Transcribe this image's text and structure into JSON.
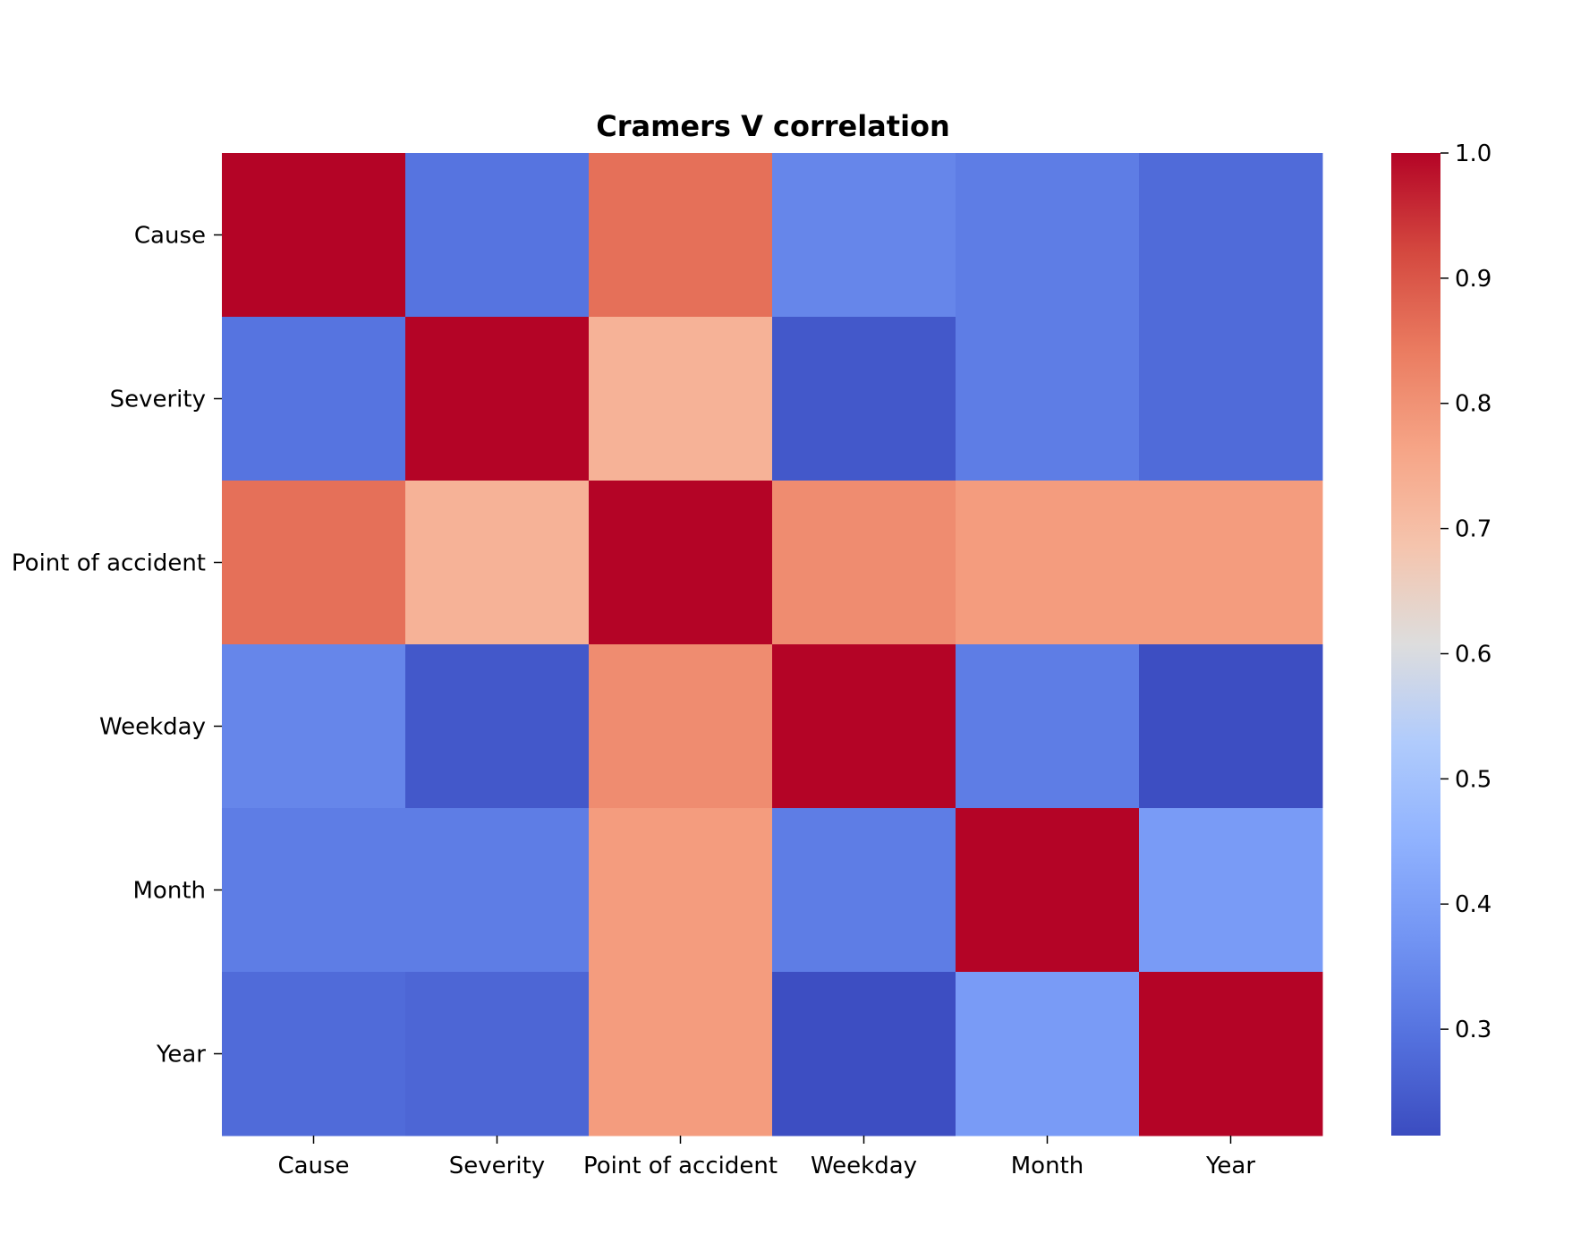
{
  "chart_data": {
    "type": "heatmap",
    "title": "Cramers V correlation",
    "xlabel": "",
    "ylabel": "",
    "categories": [
      "Cause",
      "Severity",
      "Point of accident",
      "Weekday",
      "Month",
      "Year"
    ],
    "values": [
      [
        1.0,
        0.3,
        0.86,
        0.34,
        0.32,
        0.28
      ],
      [
        0.3,
        1.0,
        0.73,
        0.24,
        0.32,
        0.28
      ],
      [
        0.86,
        0.73,
        1.0,
        0.81,
        0.78,
        0.78
      ],
      [
        0.34,
        0.24,
        0.81,
        1.0,
        0.32,
        0.22
      ],
      [
        0.32,
        0.32,
        0.78,
        0.32,
        1.0,
        0.39
      ],
      [
        0.28,
        0.27,
        0.78,
        0.22,
        0.39,
        1.0
      ]
    ],
    "colorbar": {
      "colormap": "coolwarm",
      "vmin": 0.215,
      "vmax": 1.0,
      "ticks": [
        0.3,
        0.4,
        0.5,
        0.6,
        0.7,
        0.8,
        0.9,
        1.0
      ],
      "tick_labels": [
        "0.3",
        "0.4",
        "0.5",
        "0.6",
        "0.7",
        "0.8",
        "0.9",
        "1.0"
      ]
    }
  }
}
